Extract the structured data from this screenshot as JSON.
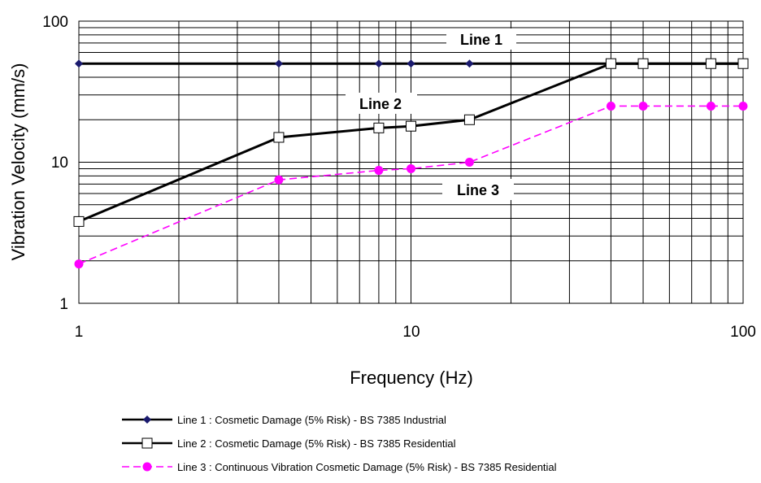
{
  "chart_data": {
    "type": "line",
    "xlabel": "Frequency (Hz)",
    "ylabel": "Vibration Velocity (mm/s)",
    "xscale": "log",
    "yscale": "log",
    "xlim": [
      1,
      100
    ],
    "ylim": [
      1,
      100
    ],
    "x_ticks": [
      "1",
      "10",
      "100"
    ],
    "y_ticks": [
      "1",
      "10",
      "100"
    ],
    "grid": true,
    "legend_position": "bottom",
    "series": [
      {
        "name": "Line 1 : Cosmetic Damage (5% Risk) - BS 7385 Industrial",
        "label": "Line 1",
        "color": "#000000",
        "marker_color": "#1a1a6e",
        "marker": "diamond",
        "dash": "solid",
        "x": [
          1,
          4,
          8,
          10,
          15,
          40,
          50,
          80,
          100
        ],
        "y": [
          50,
          50,
          50,
          50,
          50,
          50,
          50,
          50,
          50
        ]
      },
      {
        "name": "Line 2 : Cosmetic Damage (5% Risk) - BS 7385 Residential",
        "label": "Line 2",
        "color": "#000000",
        "marker_color": "#000000",
        "marker": "square-open",
        "dash": "solid",
        "x": [
          1,
          4,
          8,
          10,
          15,
          40,
          50,
          80,
          100
        ],
        "y": [
          3.8,
          15,
          17.5,
          18,
          20,
          50,
          50,
          50,
          50
        ]
      },
      {
        "name": "Line 3 : Continuous Vibration Cosmetic Damage (5% Risk) - BS 7385 Residential",
        "label": "Line 3",
        "color": "#ff00ff",
        "marker_color": "#ff00ff",
        "marker": "circle",
        "dash": "dashed",
        "x": [
          1,
          4,
          8,
          10,
          15,
          40,
          50,
          80,
          100
        ],
        "y": [
          1.9,
          7.5,
          8.75,
          9,
          10,
          25,
          25,
          25,
          25
        ]
      }
    ]
  }
}
